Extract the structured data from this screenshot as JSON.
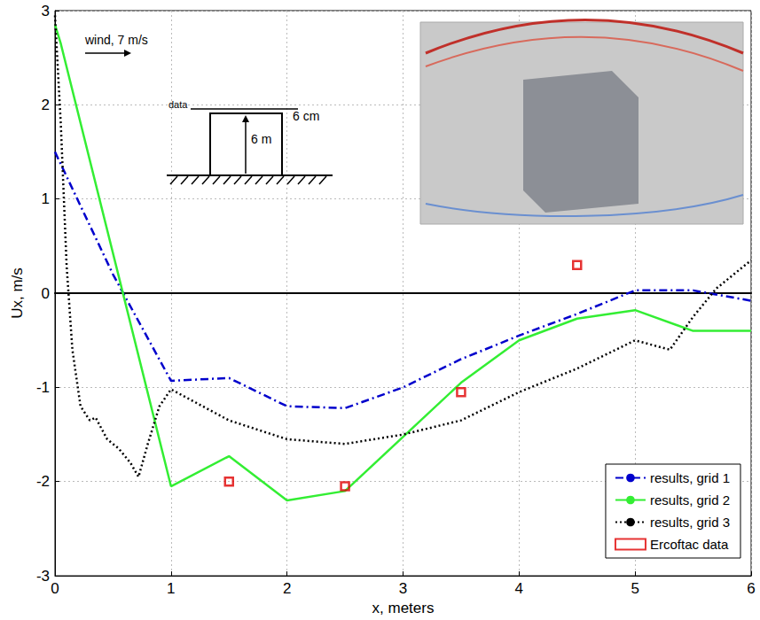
{
  "chart_data": {
    "type": "line",
    "x_label": "x, meters",
    "y_label": "Ux, m/s",
    "annotations": [
      "wind, 7 m/s",
      "data",
      "6 cm",
      "6 m"
    ],
    "xlim": [
      0,
      6
    ],
    "xticks": [
      0,
      1,
      2,
      3,
      4,
      5,
      6
    ],
    "ylim": [
      -3,
      3
    ],
    "yticks": [
      -3,
      -2,
      -1,
      0,
      1,
      2,
      3
    ],
    "grid": true,
    "legend": "lower right",
    "series": [
      {
        "name": "results, grid 1",
        "type": "line",
        "color": "#0000cc",
        "line_style": "dashdot",
        "x": [
          0,
          0.5,
          1,
          1.5,
          2,
          2.5,
          3,
          3.5,
          4,
          4.5,
          5,
          5.5,
          6
        ],
        "values": [
          1.5,
          0.2,
          -0.93,
          -0.9,
          -1.2,
          -1.22,
          -1.0,
          -0.7,
          -0.45,
          -0.22,
          0.03,
          0.03,
          -0.08
        ]
      },
      {
        "name": "results, grid 2",
        "type": "line",
        "color": "#33ee33",
        "line_style": "solid",
        "x": [
          0,
          0.05,
          1,
          1.5,
          2,
          2.5,
          3.5,
          4,
          4.5,
          5,
          5.5,
          6
        ],
        "values": [
          2.85,
          2.65,
          -2.05,
          -1.73,
          -2.2,
          -2.1,
          -0.95,
          -0.5,
          -0.27,
          -0.18,
          -0.4,
          -0.4
        ]
      },
      {
        "name": "results, grid 3",
        "type": "line",
        "color": "#000000",
        "line_style": "dotted",
        "x": [
          0,
          0.05,
          0.1,
          0.15,
          0.22,
          0.3,
          0.35,
          0.45,
          0.55,
          0.65,
          0.72,
          0.8,
          0.9,
          1.0,
          1.5,
          2,
          2.5,
          3,
          3.5,
          4,
          4.5,
          5,
          5.3,
          5.5,
          5.7,
          6
        ],
        "values": [
          2.95,
          1.8,
          0.3,
          -0.6,
          -1.2,
          -1.35,
          -1.32,
          -1.55,
          -1.65,
          -1.8,
          -1.95,
          -1.6,
          -1.2,
          -1.02,
          -1.35,
          -1.55,
          -1.6,
          -1.5,
          -1.35,
          -1.05,
          -0.8,
          -0.5,
          -0.6,
          -0.25,
          0.05,
          0.35
        ]
      },
      {
        "name": "Ercoftac data",
        "type": "scatter",
        "color": "#e00000",
        "marker": "square",
        "x": [
          1.5,
          2.5,
          3.5,
          4.5
        ],
        "values": [
          -2.0,
          -2.05,
          -1.05,
          0.3
        ]
      }
    ]
  }
}
